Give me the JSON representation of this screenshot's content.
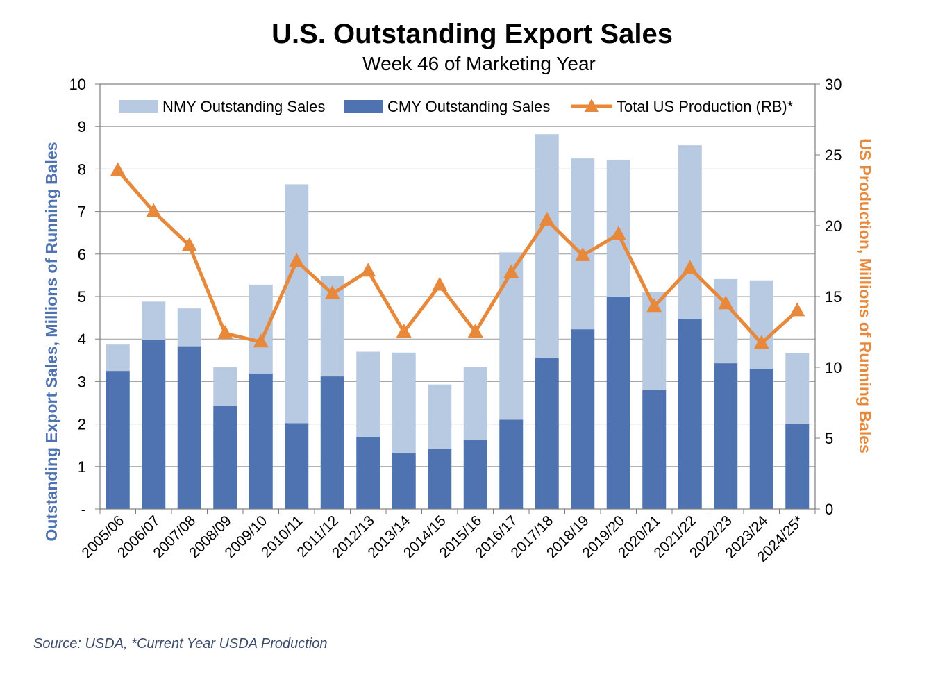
{
  "chart_data": {
    "type": "bar",
    "title": "U.S. Outstanding Export Sales",
    "subtitle": "Week 46 of Marketing Year",
    "categories": [
      "2005/06",
      "2006/07",
      "2007/08",
      "2008/09",
      "2009/10",
      "2010/11",
      "2011/12",
      "2012/13",
      "2013/14",
      "2014/15",
      "2015/16",
      "2016/17",
      "2017/18",
      "2018/19",
      "2019/20",
      "2020/21",
      "2021/22",
      "2022/23",
      "2023/24",
      "2024/25*"
    ],
    "series": [
      {
        "name": "CMY Outstanding Sales",
        "kind": "stacked-bar",
        "axis": "left",
        "color": "#4f73b0",
        "values": [
          3.25,
          3.98,
          3.83,
          2.42,
          3.19,
          2.02,
          3.12,
          1.7,
          1.32,
          1.41,
          1.63,
          2.1,
          3.55,
          4.23,
          5.0,
          2.8,
          4.48,
          3.43,
          3.3,
          2.0
        ]
      },
      {
        "name": "NMY Outstanding Sales",
        "kind": "stacked-bar",
        "axis": "left",
        "color": "#b8c9e2",
        "values": [
          0.62,
          0.9,
          0.89,
          0.92,
          2.09,
          5.62,
          2.36,
          2.0,
          2.36,
          1.52,
          1.72,
          3.94,
          5.27,
          4.02,
          3.22,
          2.3,
          4.08,
          1.98,
          2.08,
          1.67
        ]
      },
      {
        "name": "Total US Production (RB)*",
        "kind": "line",
        "axis": "right",
        "color": "#e8883a",
        "values": [
          23.9,
          21.0,
          18.6,
          12.4,
          11.8,
          17.5,
          15.2,
          16.8,
          12.5,
          15.8,
          12.5,
          16.7,
          20.4,
          17.9,
          19.4,
          14.3,
          17.0,
          14.5,
          11.7,
          14.0
        ]
      }
    ],
    "ylabel": "Outstanding Export Sales, Millions of Running Bales",
    "y2label": "US Production, Millions of Running Bales",
    "ylim": [
      0,
      10
    ],
    "y2lim": [
      0,
      30
    ],
    "yticks": [
      "-",
      "1",
      "2",
      "3",
      "4",
      "5",
      "6",
      "7",
      "8",
      "9",
      "10"
    ],
    "y2ticks": [
      "0",
      "5",
      "10",
      "15",
      "20",
      "25",
      "30"
    ],
    "grid": true,
    "legend": "top"
  },
  "source": "Source: USDA, *Current Year USDA Production"
}
